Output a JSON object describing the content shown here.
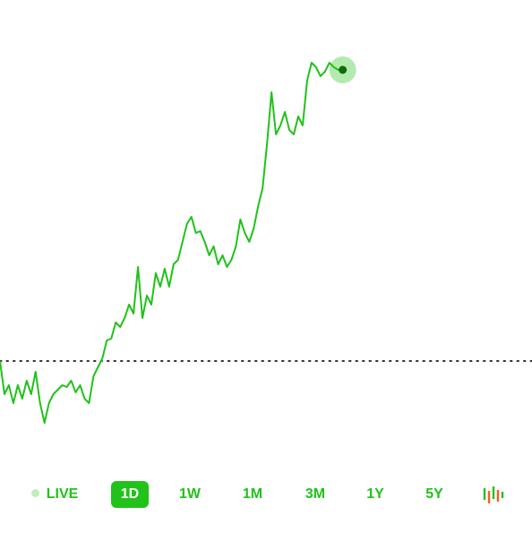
{
  "chart_data": {
    "type": "line",
    "color": "#21c21a",
    "values": [
      19.25,
      10,
      12.5,
      7.5,
      12.5,
      8.75,
      13.75,
      10,
      16.25,
      7.5,
      2,
      7.5,
      10,
      11.25,
      12.5,
      12,
      13.75,
      10.5,
      12.5,
      8.75,
      7.5,
      15,
      17.5,
      20,
      25,
      25.5,
      30,
      28.75,
      31.25,
      35,
      32.5,
      45.5,
      31.25,
      37.5,
      35,
      43.75,
      40,
      45,
      40,
      46.25,
      47.5,
      52.5,
      57.5,
      59.5,
      55,
      55.5,
      52.5,
      48.75,
      51.25,
      46.25,
      48.75,
      45.5,
      47.5,
      51.25,
      58.75,
      55,
      52.5,
      56.25,
      62.5,
      67.5,
      80,
      94.25,
      82.5,
      85,
      88.75,
      83.75,
      82.5,
      87.5,
      85,
      97.5,
      102.5,
      101.25,
      98.75,
      100,
      102.5,
      101.25,
      100.5,
      100.5
    ],
    "ylim": [
      0,
      105
    ],
    "reference_value": 19.25
  },
  "tabs": [
    "LIVE",
    "1D",
    "1W",
    "1M",
    "3M",
    "1Y",
    "5Y"
  ],
  "selected_tab": 1
}
